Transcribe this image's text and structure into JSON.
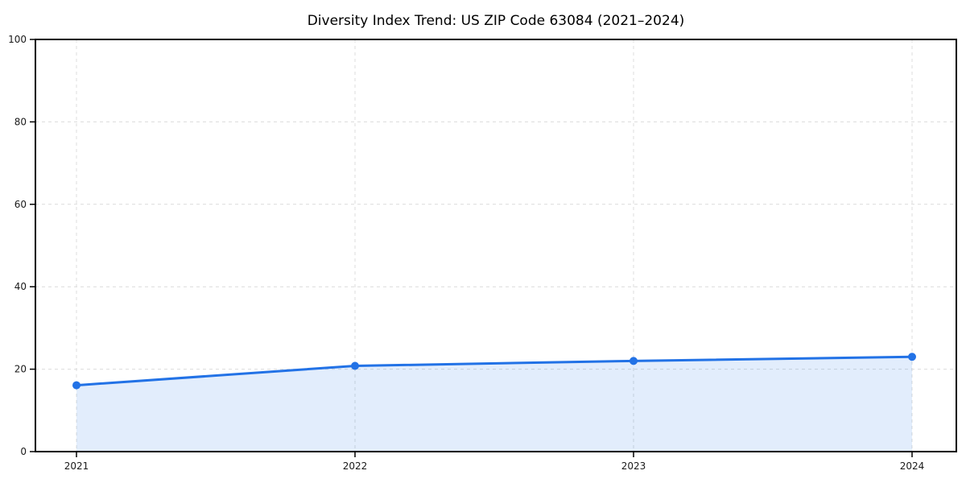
{
  "figure": {
    "background": "#ffffff"
  },
  "chart_data": {
    "type": "line",
    "title": "Diversity Index Trend: US ZIP Code 63084 (2021–2024)",
    "x": [
      "2021",
      "2022",
      "2023",
      "2024"
    ],
    "series": [
      {
        "name": "Diversity Index",
        "values": [
          16.1,
          20.8,
          22.0,
          23.0
        ]
      }
    ],
    "xlabel": "",
    "ylabel": "",
    "ylim": [
      0,
      100
    ],
    "yticks": [
      0,
      20,
      40,
      60,
      80,
      100
    ],
    "grid": true,
    "grid_style": "dashed",
    "grid_color": "#dcdcdc",
    "legend": "none",
    "area_fill": true,
    "line_color": "#2272e6",
    "fill_color": "rgba(34, 114, 230, 0.13)",
    "marker": "circle",
    "marker_radius": 5,
    "line_width": 3,
    "spine_color": "#000000",
    "tick_color": "#000000"
  }
}
